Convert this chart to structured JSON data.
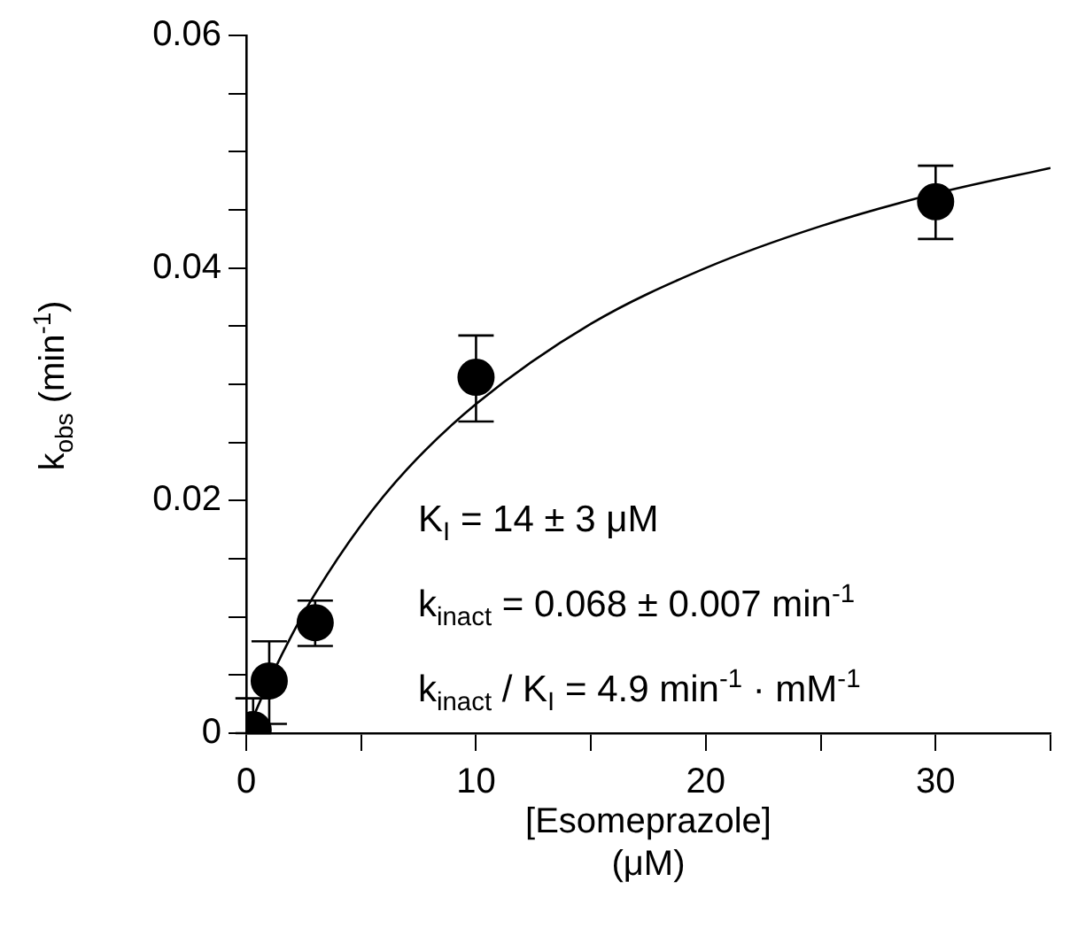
{
  "chart_data": {
    "type": "scatter",
    "xlabel": "[Esomeprazole]\n(μM)",
    "ylabel": "k$_{obs}$ (min$^{-1}$)",
    "xlim": [
      0,
      35
    ],
    "ylim": [
      0,
      0.06
    ],
    "xticks": [
      0,
      {
        "value": 5,
        "label": null
      },
      10,
      {
        "value": 15,
        "label": null
      },
      20,
      {
        "value": 25,
        "label": null
      },
      30,
      {
        "value": 35,
        "label": null
      }
    ],
    "yticks": [
      0,
      {
        "value": 0.005,
        "label": null
      },
      {
        "value": 0.01,
        "label": null
      },
      {
        "value": 0.015,
        "label": null
      },
      0.02,
      {
        "value": 0.025,
        "label": null
      },
      {
        "value": 0.03,
        "label": null
      },
      {
        "value": 0.035,
        "label": null
      },
      0.04,
      {
        "value": 0.045,
        "label": null
      },
      {
        "value": 0.05,
        "label": null
      },
      {
        "value": 0.055,
        "label": null
      },
      0.06
    ],
    "marker": "circle",
    "legend": false,
    "series": [
      {
        "type": "line",
        "color": "#000000",
        "marker": "none",
        "x": [
          0,
          1,
          2,
          3,
          5,
          7,
          10,
          15,
          20,
          25,
          30,
          35
        ],
        "values": [
          0,
          0.0045,
          0.0085,
          0.012,
          0.0179,
          0.0227,
          0.0283,
          0.0352,
          0.04,
          0.0436,
          0.0464,
          0.0486
        ]
      },
      {
        "color": "#000000",
        "x": [
          0.3,
          1,
          3,
          10,
          30
        ],
        "values": [
          0.0003,
          0.0045,
          0.0095,
          0.0306,
          0.0457
        ],
        "errors": [
          [
            0,
            0.003
          ],
          [
            0.0008,
            0.0079
          ],
          [
            0.0075,
            0.0114
          ],
          [
            0.0268,
            0.0342
          ],
          [
            0.0425,
            0.0488
          ]
        ]
      }
    ],
    "annotations": [
      "K$_{I}$ = 14 ± 3 μM",
      "k$_{inact}$ = 0.068 ± 0.007 min$^{-1}$",
      "k$_{inact}$ / K$_{I}$ = 4.9 min$^{-1}$ · mM$^{-1}$"
    ]
  }
}
